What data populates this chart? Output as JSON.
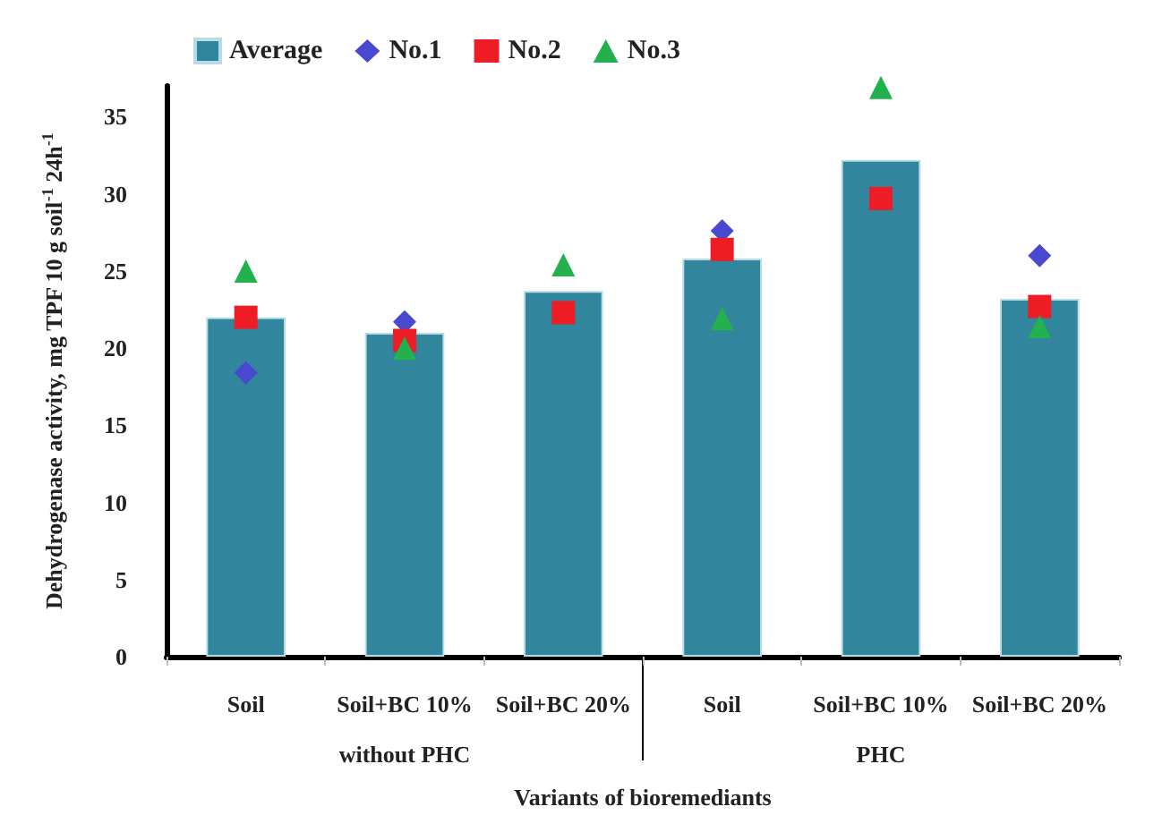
{
  "chart_data": {
    "type": "bar",
    "ylabel": "Dehydrogenase activity, mg TPF 10 g soil$^{-1}$ 24h$^{-1}$",
    "xlabel": "Variants of bioremediants",
    "categories": [
      "Soil",
      "Soil+BC 10%",
      "Soil+BC 20%",
      "Soil",
      "Soil+BC 10%",
      "Soil+BC 20%"
    ],
    "series": [
      {
        "name": "Average",
        "color": "#31859c",
        "values": [
          22.0,
          21.0,
          23.7,
          25.8,
          32.2,
          23.2
        ]
      },
      {
        "name": "No.1",
        "type": "scatter",
        "marker": "diamond",
        "color": "#4848d0",
        "values": [
          18.4,
          21.7,
          null,
          27.6,
          null,
          26.0
        ]
      },
      {
        "name": "No.2",
        "type": "scatter",
        "marker": "square",
        "color": "#ee1c25",
        "values": [
          22.0,
          20.5,
          22.3,
          26.4,
          29.7,
          22.7
        ]
      },
      {
        "name": "No.3",
        "type": "scatter",
        "marker": "triangle",
        "color": "#22b14c",
        "values": [
          25.0,
          20.0,
          25.4,
          21.9,
          36.9,
          21.4
        ]
      }
    ],
    "annotations": [
      "without PHC",
      "PHC"
    ],
    "ylim": [
      0,
      37
    ],
    "yticks": [
      0,
      5,
      10,
      15,
      20,
      25,
      30,
      35
    ],
    "grid": false,
    "legend": "top left"
  }
}
